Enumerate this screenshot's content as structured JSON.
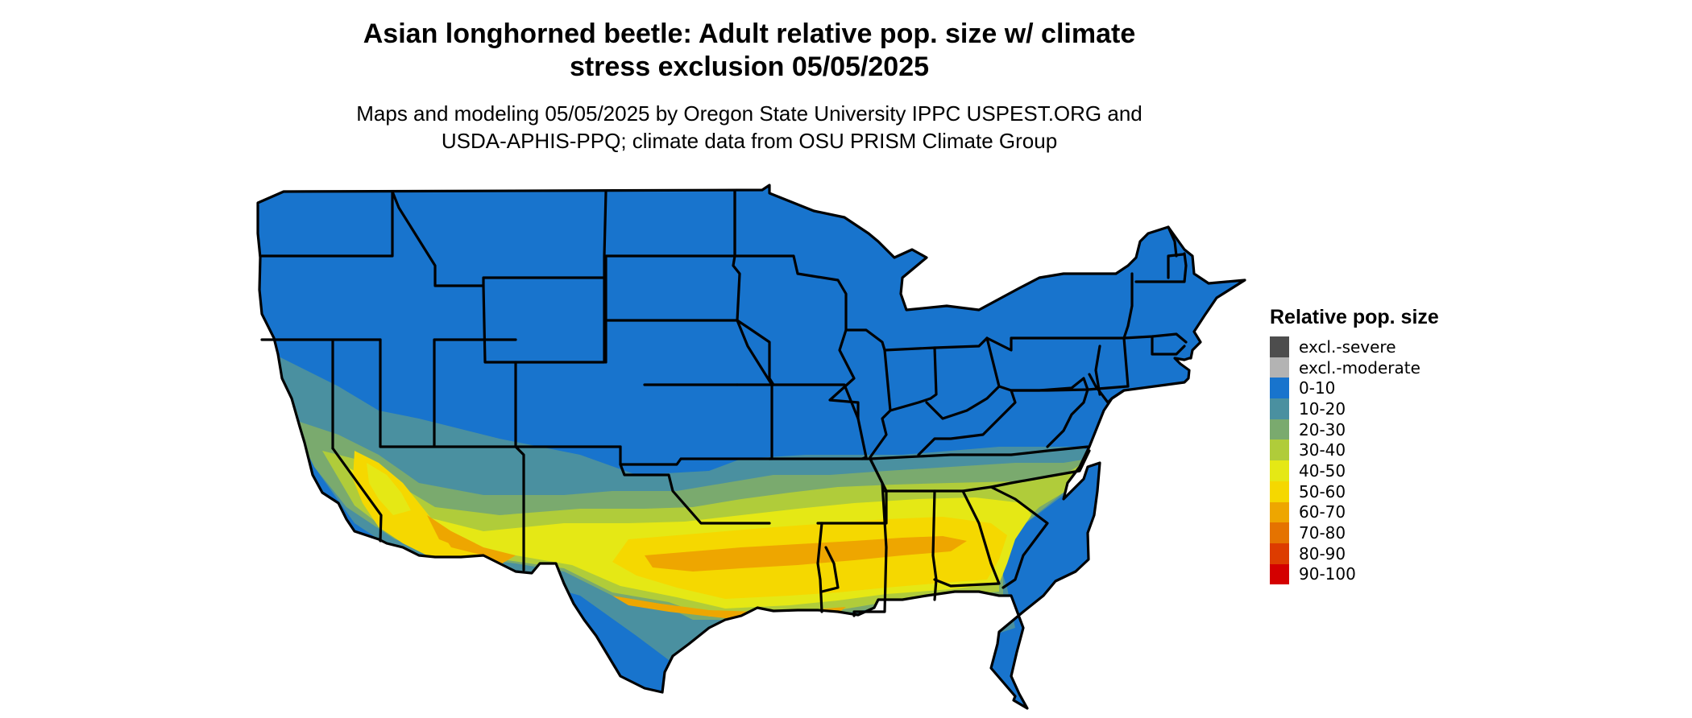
{
  "title": {
    "line1": "Asian longhorned beetle: Adult relative pop. size w/ climate",
    "line2": "stress exclusion 05/05/2025"
  },
  "subtitle": {
    "line1": "Maps and modeling 05/05/2025 by Oregon State University IPPC USPEST.ORG and",
    "line2": "USDA-APHIS-PPQ; climate data from OSU PRISM Climate Group"
  },
  "legend": {
    "title": "Relative pop. size",
    "items": [
      {
        "label": "excl.-severe",
        "color": "#4d4d4d"
      },
      {
        "label": "excl.-moderate",
        "color": "#b3b3b3"
      },
      {
        "label": "0-10",
        "color": "#1874cd"
      },
      {
        "label": "10-20",
        "color": "#4a90a0"
      },
      {
        "label": "20-30",
        "color": "#7aaa6e"
      },
      {
        "label": "30-40",
        "color": "#b0cc3a"
      },
      {
        "label": "40-50",
        "color": "#e5e815"
      },
      {
        "label": "50-60",
        "color": "#f5d800"
      },
      {
        "label": "60-70",
        "color": "#eea600"
      },
      {
        "label": "70-80",
        "color": "#e57300"
      },
      {
        "label": "80-90",
        "color": "#dd3c00"
      },
      {
        "label": "90-100",
        "color": "#d40000"
      }
    ]
  }
}
